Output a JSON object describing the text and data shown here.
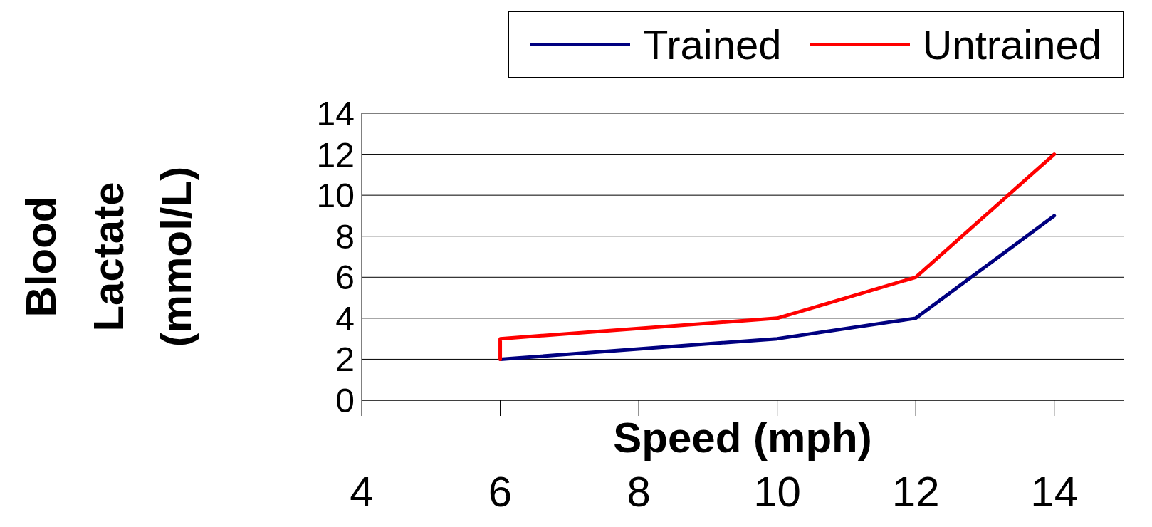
{
  "chart_data": {
    "type": "line",
    "xlabel": "Speed (mph)",
    "ylabel": "Blood Lactate (mmol/L)",
    "xlim": [
      4,
      15
    ],
    "xticks": [
      4,
      6,
      8,
      10,
      12,
      14
    ],
    "ylim": [
      0,
      14
    ],
    "yticks": [
      0,
      2,
      4,
      6,
      8,
      10,
      12,
      14
    ],
    "grid": "y",
    "legend": "top right",
    "marker": "none",
    "line_style": "solid",
    "series": [
      {
        "name": "Trained",
        "color": "#000080",
        "x": [
          6,
          10,
          12,
          14
        ],
        "values": [
          2,
          3,
          4,
          9
        ]
      },
      {
        "name": "Untrained",
        "color": "#ff0000",
        "x": [
          6,
          6,
          10,
          12,
          14
        ],
        "values": [
          2,
          3,
          4,
          6,
          12
        ]
      }
    ]
  }
}
